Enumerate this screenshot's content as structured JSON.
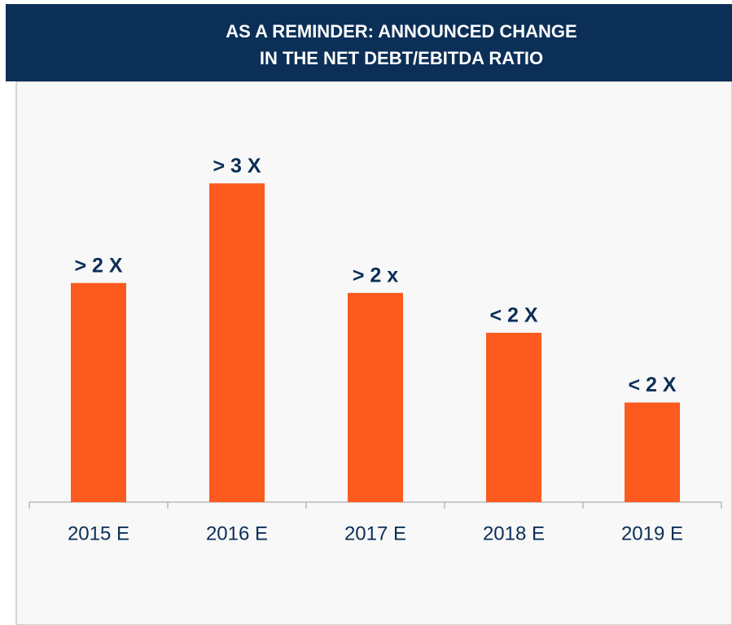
{
  "chart_data": {
    "type": "bar",
    "title": [
      "AS A REMINDER: ANNOUNCED CHANGE",
      "IN THE NET DEBT/EBITDA RATIO"
    ],
    "categories": [
      "2015 E",
      "2016 E",
      "2017 E",
      "2018 E",
      "2019 E"
    ],
    "values": [
      2.2,
      3.2,
      2.1,
      1.7,
      1.0
    ],
    "value_labels": [
      "> 2 X",
      "> 3 X",
      "> 2 x",
      "< 2 X",
      "< 2 X"
    ],
    "color": "#fc5a1e",
    "ylim": [
      0,
      5
    ]
  }
}
